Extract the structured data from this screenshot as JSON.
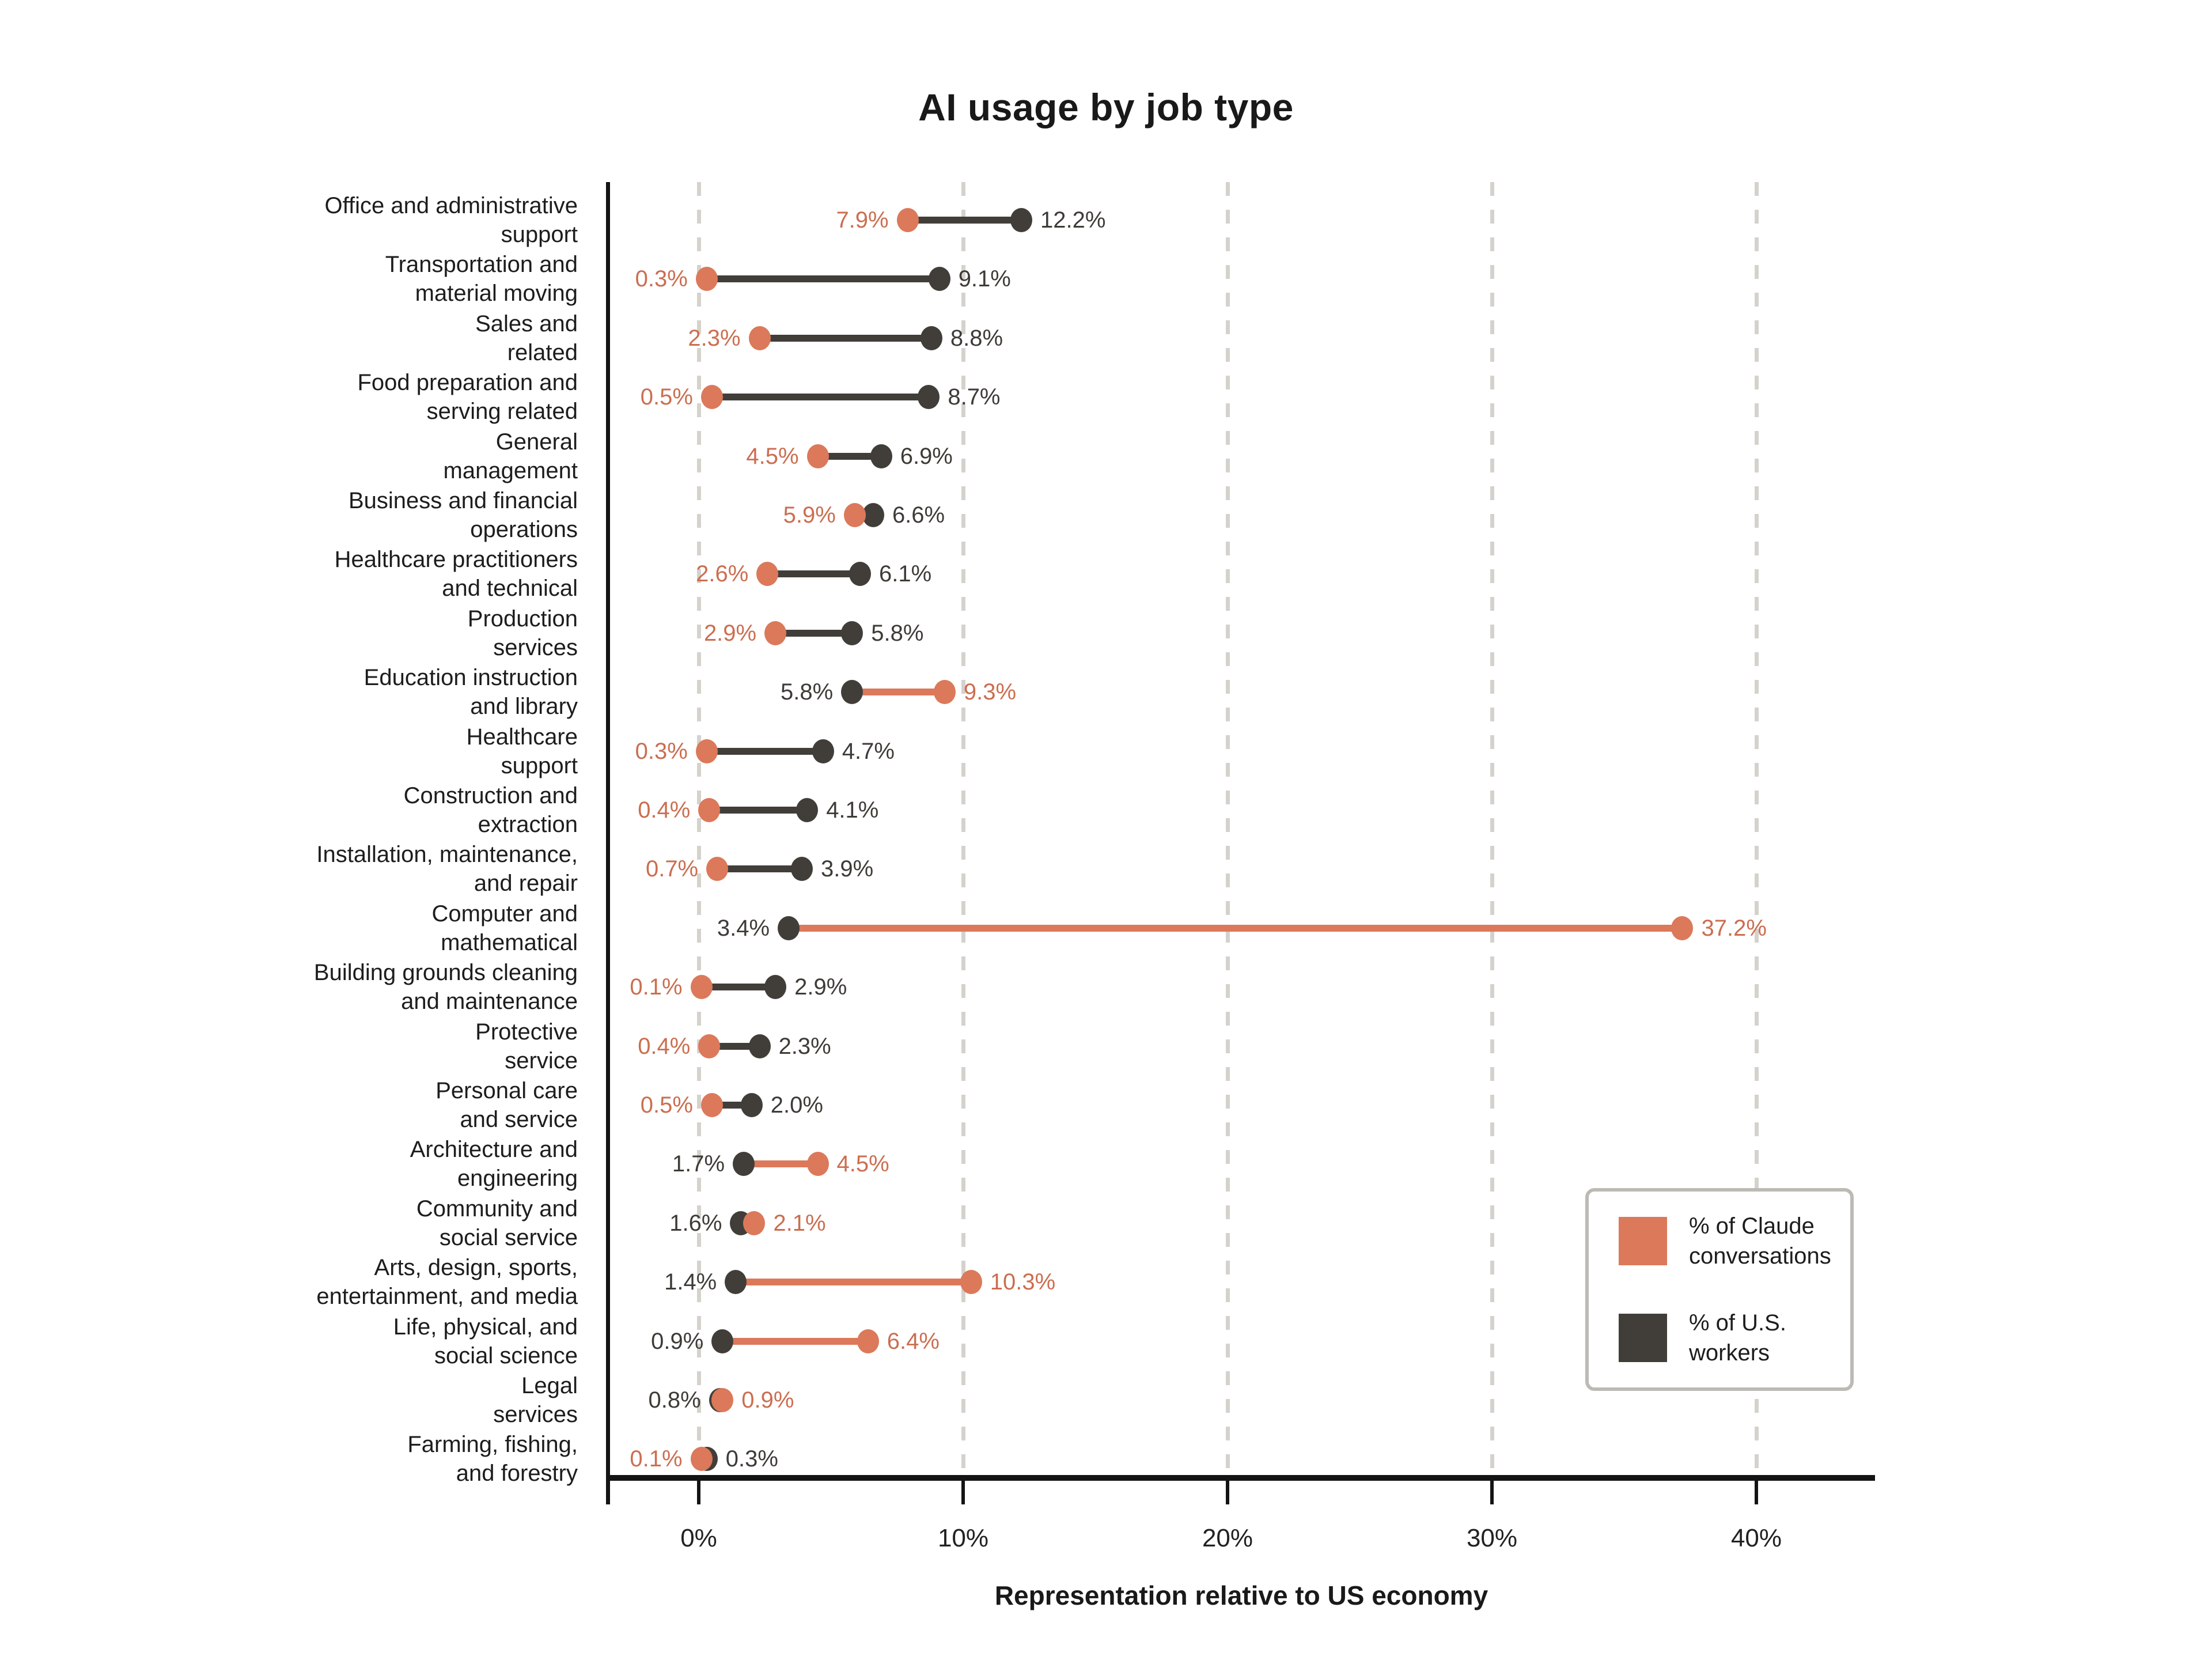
{
  "title": "AI usage by job type",
  "xlabel": "Representation relative to US economy",
  "legend": {
    "claude_label": "% of Claude conversations",
    "workers_label": "% of U.S. workers",
    "position": "inside-right"
  },
  "colors": {
    "claude_shape": "#db795a",
    "claude_text": "#cb6e50",
    "workers_shape": "#413e3a",
    "workers_text": "#3e3b37",
    "grid": "#d5d2cd",
    "axis": "#141414",
    "category_text": "#1d1d1d"
  },
  "chart_data": {
    "type": "dumbbell",
    "title": "AI usage by job type",
    "xlabel": "Representation relative to US economy",
    "x_ticks": [
      "0%",
      "10%",
      "20%",
      "30%",
      "40%"
    ],
    "x_tick_values": [
      0,
      10,
      20,
      30,
      40
    ],
    "xlim": [
      -3.4,
      44.5
    ],
    "grid": "dashed-vertical",
    "series_names": [
      "% of Claude conversations",
      "% of U.S. workers"
    ],
    "rows": [
      {
        "category": "Office and administrative support",
        "label_lines": [
          "Office and administrative",
          "support"
        ],
        "claude": 7.9,
        "claude_label": "7.9%",
        "workers": 12.2,
        "workers_label": "12.2%"
      },
      {
        "category": "Transportation and material moving",
        "label_lines": [
          "Transportation and",
          "material moving"
        ],
        "claude": 0.3,
        "claude_label": "0.3%",
        "workers": 9.1,
        "workers_label": "9.1%"
      },
      {
        "category": "Sales and related",
        "label_lines": [
          "Sales and",
          "related"
        ],
        "claude": 2.3,
        "claude_label": "2.3%",
        "workers": 8.8,
        "workers_label": "8.8%"
      },
      {
        "category": "Food preparation and serving related",
        "label_lines": [
          "Food preparation and",
          "serving related"
        ],
        "claude": 0.5,
        "claude_label": "0.5%",
        "workers": 8.7,
        "workers_label": "8.7%"
      },
      {
        "category": "General management",
        "label_lines": [
          "General",
          "management"
        ],
        "claude": 4.5,
        "claude_label": "4.5%",
        "workers": 6.9,
        "workers_label": "6.9%"
      },
      {
        "category": "Business and financial operations",
        "label_lines": [
          "Business and financial",
          "operations"
        ],
        "claude": 5.9,
        "claude_label": "5.9%",
        "workers": 6.6,
        "workers_label": "6.6%"
      },
      {
        "category": "Healthcare practitioners and technical",
        "label_lines": [
          "Healthcare practitioners",
          "and technical"
        ],
        "claude": 2.6,
        "claude_label": "2.6%",
        "workers": 6.1,
        "workers_label": "6.1%"
      },
      {
        "category": "Production services",
        "label_lines": [
          "Production",
          "services"
        ],
        "claude": 2.9,
        "claude_label": "2.9%",
        "workers": 5.8,
        "workers_label": "5.8%"
      },
      {
        "category": "Education instruction and library",
        "label_lines": [
          "Education instruction",
          "and library"
        ],
        "claude": 9.3,
        "claude_label": "9.3%",
        "workers": 5.8,
        "workers_label": "5.8%"
      },
      {
        "category": "Healthcare support",
        "label_lines": [
          "Healthcare",
          "support"
        ],
        "claude": 0.3,
        "claude_label": "0.3%",
        "workers": 4.7,
        "workers_label": "4.7%"
      },
      {
        "category": "Construction and extraction",
        "label_lines": [
          "Construction and",
          "extraction"
        ],
        "claude": 0.4,
        "claude_label": "0.4%",
        "workers": 4.1,
        "workers_label": "4.1%"
      },
      {
        "category": "Installation, maintenance, and repair",
        "label_lines": [
          "Installation, maintenance,",
          "and repair"
        ],
        "claude": 0.7,
        "claude_label": "0.7%",
        "workers": 3.9,
        "workers_label": "3.9%"
      },
      {
        "category": "Computer and mathematical",
        "label_lines": [
          "Computer and",
          "mathematical"
        ],
        "claude": 37.2,
        "claude_label": "37.2%",
        "workers": 3.4,
        "workers_label": "3.4%"
      },
      {
        "category": "Building grounds cleaning and maintenance",
        "label_lines": [
          "Building grounds cleaning",
          "and maintenance"
        ],
        "claude": 0.1,
        "claude_label": "0.1%",
        "workers": 2.9,
        "workers_label": "2.9%"
      },
      {
        "category": "Protective service",
        "label_lines": [
          "Protective",
          "service"
        ],
        "claude": 0.4,
        "claude_label": "0.4%",
        "workers": 2.3,
        "workers_label": "2.3%"
      },
      {
        "category": "Personal care and service",
        "label_lines": [
          "Personal care",
          "and service"
        ],
        "claude": 0.5,
        "claude_label": "0.5%",
        "workers": 2.0,
        "workers_label": "2.0%"
      },
      {
        "category": "Architecture and engineering",
        "label_lines": [
          "Architecture and",
          "engineering"
        ],
        "claude": 4.5,
        "claude_label": "4.5%",
        "workers": 1.7,
        "workers_label": "1.7%"
      },
      {
        "category": "Community and social service",
        "label_lines": [
          "Community and",
          "social service"
        ],
        "claude": 2.1,
        "claude_label": "2.1%",
        "workers": 1.6,
        "workers_label": "1.6%"
      },
      {
        "category": "Arts, design, sports, entertainment, and media",
        "label_lines": [
          "Arts, design, sports,",
          "entertainment, and media"
        ],
        "claude": 10.3,
        "claude_label": "10.3%",
        "workers": 1.4,
        "workers_label": "1.4%"
      },
      {
        "category": "Life, physical, and social science",
        "label_lines": [
          "Life, physical, and",
          "social science"
        ],
        "claude": 6.4,
        "claude_label": "6.4%",
        "workers": 0.9,
        "workers_label": "0.9%"
      },
      {
        "category": "Legal services",
        "label_lines": [
          "Legal",
          "services"
        ],
        "claude": 0.9,
        "claude_label": "0.9%",
        "workers": 0.8,
        "workers_label": "0.8%"
      },
      {
        "category": "Farming, fishing, and forestry",
        "label_lines": [
          "Farming, fishing,",
          "and forestry"
        ],
        "claude": 0.1,
        "claude_label": "0.1%",
        "workers": 0.3,
        "workers_label": "0.3%"
      }
    ]
  }
}
